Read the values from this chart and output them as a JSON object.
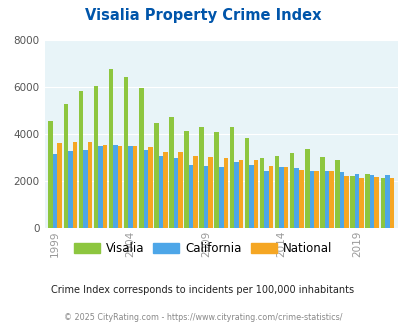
{
  "title": "Visalia Property Crime Index",
  "subtitle": "Crime Index corresponds to incidents per 100,000 inhabitants",
  "footer": "© 2025 CityRating.com - https://www.cityrating.com/crime-statistics/",
  "years": [
    1999,
    2000,
    2001,
    2002,
    2003,
    2004,
    2005,
    2006,
    2007,
    2008,
    2009,
    2010,
    2011,
    2012,
    2013,
    2014,
    2015,
    2016,
    2017,
    2018,
    2019,
    2020,
    2021
  ],
  "visalia": [
    4550,
    5250,
    5800,
    6020,
    6750,
    6430,
    5950,
    4470,
    4720,
    4120,
    4280,
    4080,
    4300,
    3820,
    2980,
    3030,
    3180,
    3340,
    3000,
    2900,
    2200,
    2280,
    2100
  ],
  "california": [
    3120,
    3280,
    3320,
    3480,
    3500,
    3460,
    3310,
    3040,
    2970,
    2680,
    2640,
    2570,
    2790,
    2660,
    2430,
    2600,
    2540,
    2430,
    2410,
    2360,
    2300,
    2250,
    2250
  ],
  "national": [
    3620,
    3640,
    3660,
    3500,
    3480,
    3490,
    3440,
    3240,
    3210,
    3060,
    3000,
    2950,
    2900,
    2860,
    2620,
    2590,
    2470,
    2430,
    2420,
    2200,
    2130,
    2150,
    2100
  ],
  "visalia_color": "#8dc63f",
  "california_color": "#4da6e8",
  "national_color": "#f5a623",
  "plot_bg": "#e8f4f8",
  "title_color": "#0055aa",
  "subtitle_color": "#222222",
  "footer_color": "#888888",
  "ylim": [
    0,
    8000
  ],
  "yticks": [
    0,
    2000,
    4000,
    6000,
    8000
  ],
  "xtick_labels": [
    "1999",
    "2004",
    "2009",
    "2014",
    "2019"
  ],
  "xtick_year_positions": [
    1999,
    2004,
    2009,
    2014,
    2019
  ]
}
